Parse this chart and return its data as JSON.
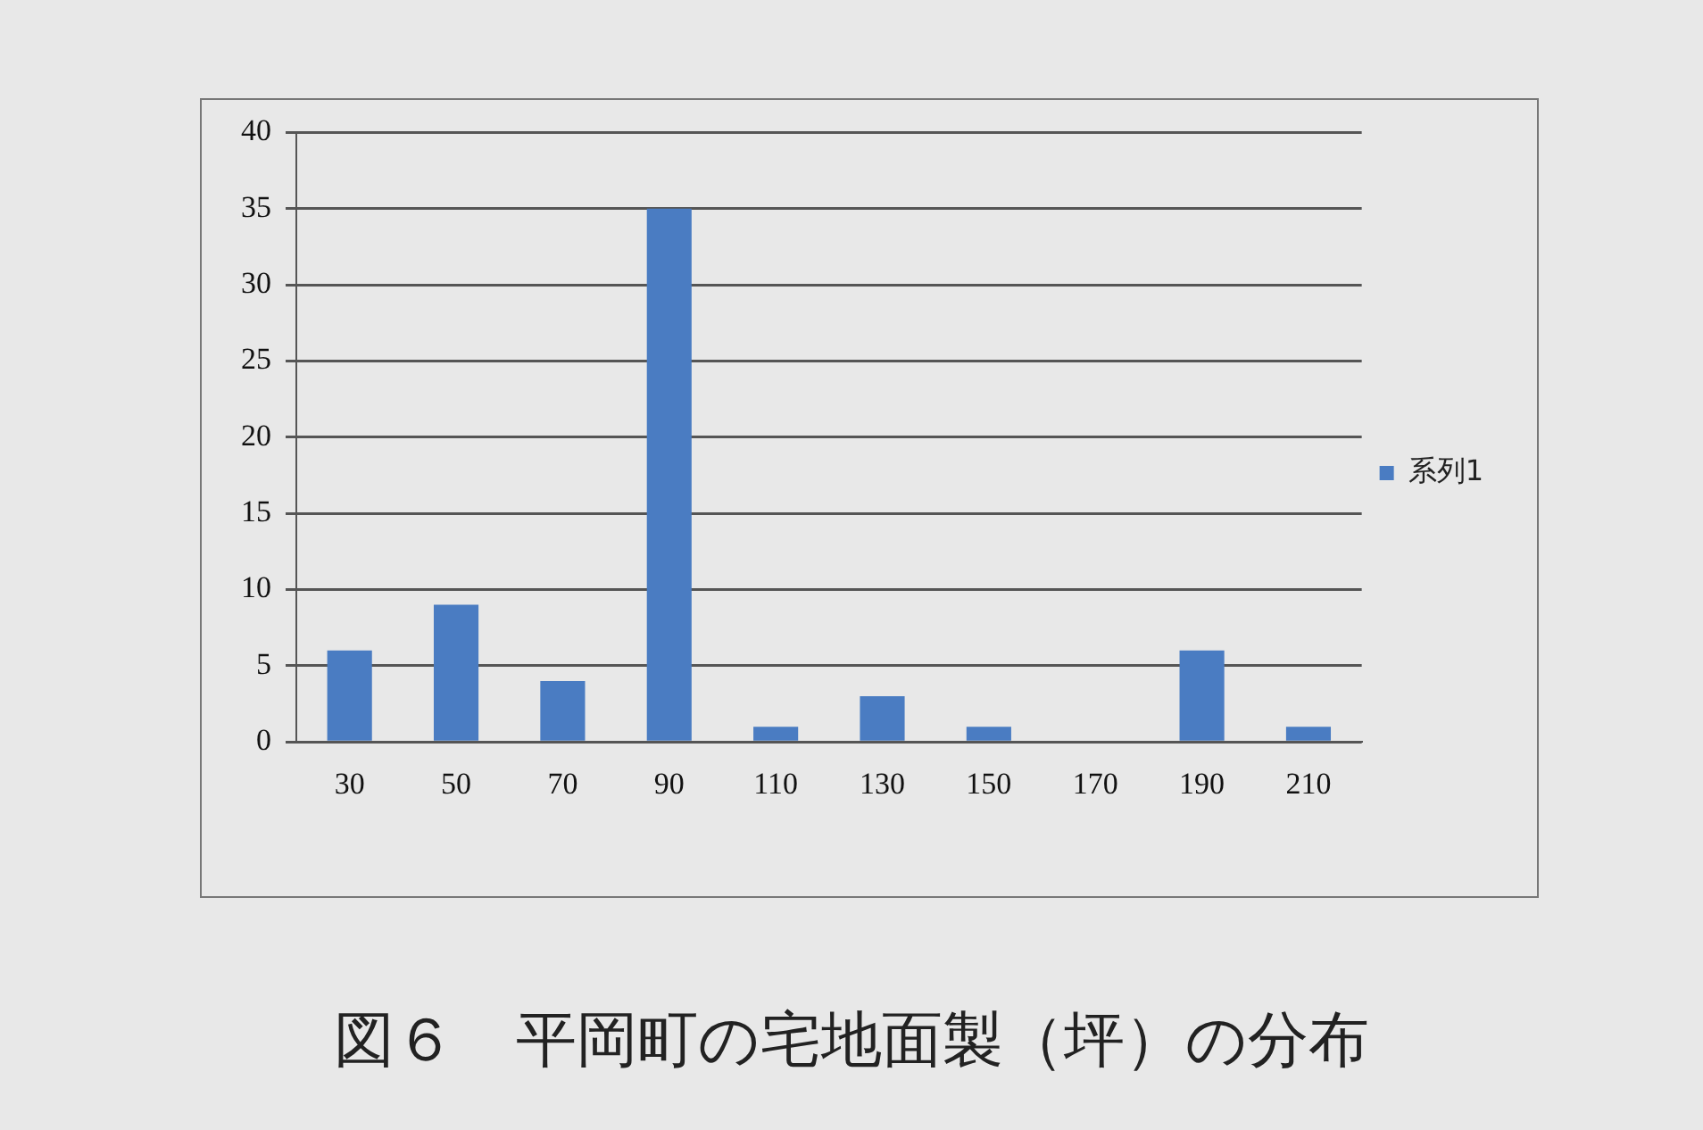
{
  "chart_data": {
    "type": "bar",
    "title": "図６　平岡町の宅地面製（坪）の分布",
    "categories": [
      "30",
      "50",
      "70",
      "90",
      "110",
      "130",
      "150",
      "170",
      "190",
      "210"
    ],
    "series": [
      {
        "name": "系列1",
        "color": "#4a7cc2",
        "values": [
          6,
          9,
          4,
          35,
          1,
          3,
          1,
          0,
          6,
          1
        ]
      }
    ],
    "ylim": [
      0,
      40
    ],
    "yticks": [
      0,
      5,
      10,
      15,
      20,
      25,
      30,
      35,
      40
    ],
    "grid": "y",
    "legend": "right"
  }
}
